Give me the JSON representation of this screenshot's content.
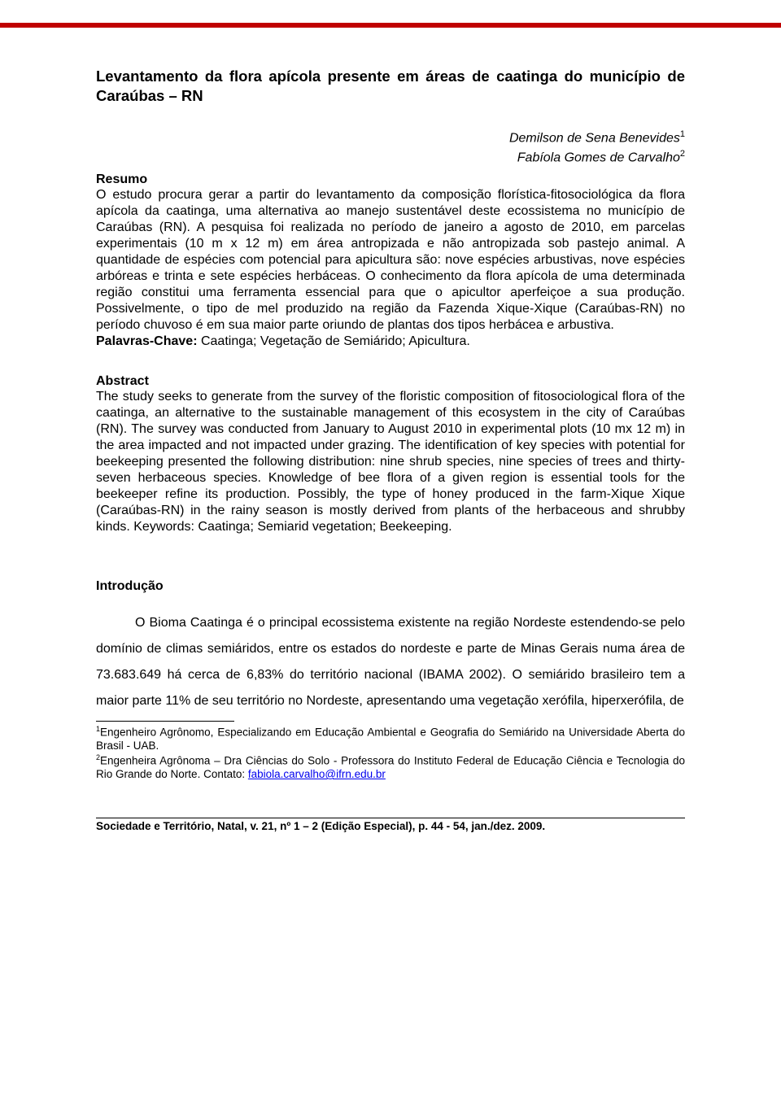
{
  "title": "Levantamento da flora apícola presente em áreas de caatinga do município de Caraúbas – RN",
  "authors": {
    "a1": "Demilson de Sena Benevides",
    "a1_sup": "1",
    "a2": "Fabíola Gomes de Carvalho",
    "a2_sup": "2"
  },
  "resumo": {
    "head": "Resumo",
    "body": "O estudo procura gerar a partir do levantamento da composição florística-fitosociológica da flora apícola da caatinga, uma alternativa ao manejo sustentável deste ecossistema no município de Caraúbas (RN). A pesquisa foi realizada no período de janeiro a agosto de 2010, em parcelas experimentais (10 m x 12 m) em área antropizada e não antropizada sob pastejo animal. A quantidade de espécies com potencial para apicultura são: nove espécies arbustivas, nove espécies arbóreas e trinta e sete espécies herbáceas. O conhecimento da flora apícola de uma determinada região constitui uma ferramenta essencial para que o apicultor aperfeiçoe a sua produção. Possivelmente, o tipo de mel produzido na região da Fazenda Xique-Xique (Caraúbas-RN) no período chuvoso é em sua maior parte oriundo de plantas dos tipos herbácea e arbustiva.",
    "kw_label": "Palavras-Chave:",
    "kw_text": " Caatinga; Vegetação de Semiárido; Apicultura."
  },
  "abstract": {
    "head": "Abstract",
    "body": "The study seeks to generate from the survey of the floristic composition of fitosociological flora of the caatinga, an alternative to the sustainable management of this ecosystem in the city of Caraúbas (RN). The survey was conducted from January to August 2010 in experimental plots (10 mx 12 m) in the area impacted and not impacted under grazing. The identification of key species with potential for beekeeping presented the following distribution: nine shrub species, nine species of trees and thirty-seven herbaceous species. Knowledge of bee flora of a given region is essential tools for the beekeeper refine its production. Possibly, the type of honey produced in the farm-Xique Xique (Caraúbas-RN) in the rainy season is mostly derived from plants of the herbaceous and shrubby kinds.",
    "kw_label": "Keywords:",
    "kw_text": " Caatinga; Semiarid vegetation; Beekeeping."
  },
  "intro": {
    "head": "Introdução",
    "body": "O Bioma Caatinga é o principal ecossistema existente na região Nordeste estendendo-se pelo domínio de climas semiáridos, entre os estados do nordeste e parte de Minas Gerais numa área de 73.683.649 há cerca de 6,83% do território nacional (IBAMA 2002). O semiárido brasileiro tem a maior parte 11% de seu território no Nordeste, apresentando uma vegetação xerófila, hiperxerófila, de"
  },
  "footnotes": {
    "f1_sup": "1",
    "f1": "Engenheiro Agrônomo, Especializando em Educação Ambiental e Geografia do Semiárido na Universidade Aberta do Brasil - UAB.",
    "f2_sup": "2",
    "f2_pre": "Engenheira Agrônoma – Dra Ciências do Solo - Professora do Instituto Federal de Educação Ciência e Tecnologia do Rio Grande do Norte. Contato: ",
    "f2_email": "fabiola.carvalho@ifrn.edu.br"
  },
  "footer": "Sociedade e Território, Natal, v. 21, nº 1 – 2 (Edição Especial), p. 44 - 54, jan./dez. 2009."
}
